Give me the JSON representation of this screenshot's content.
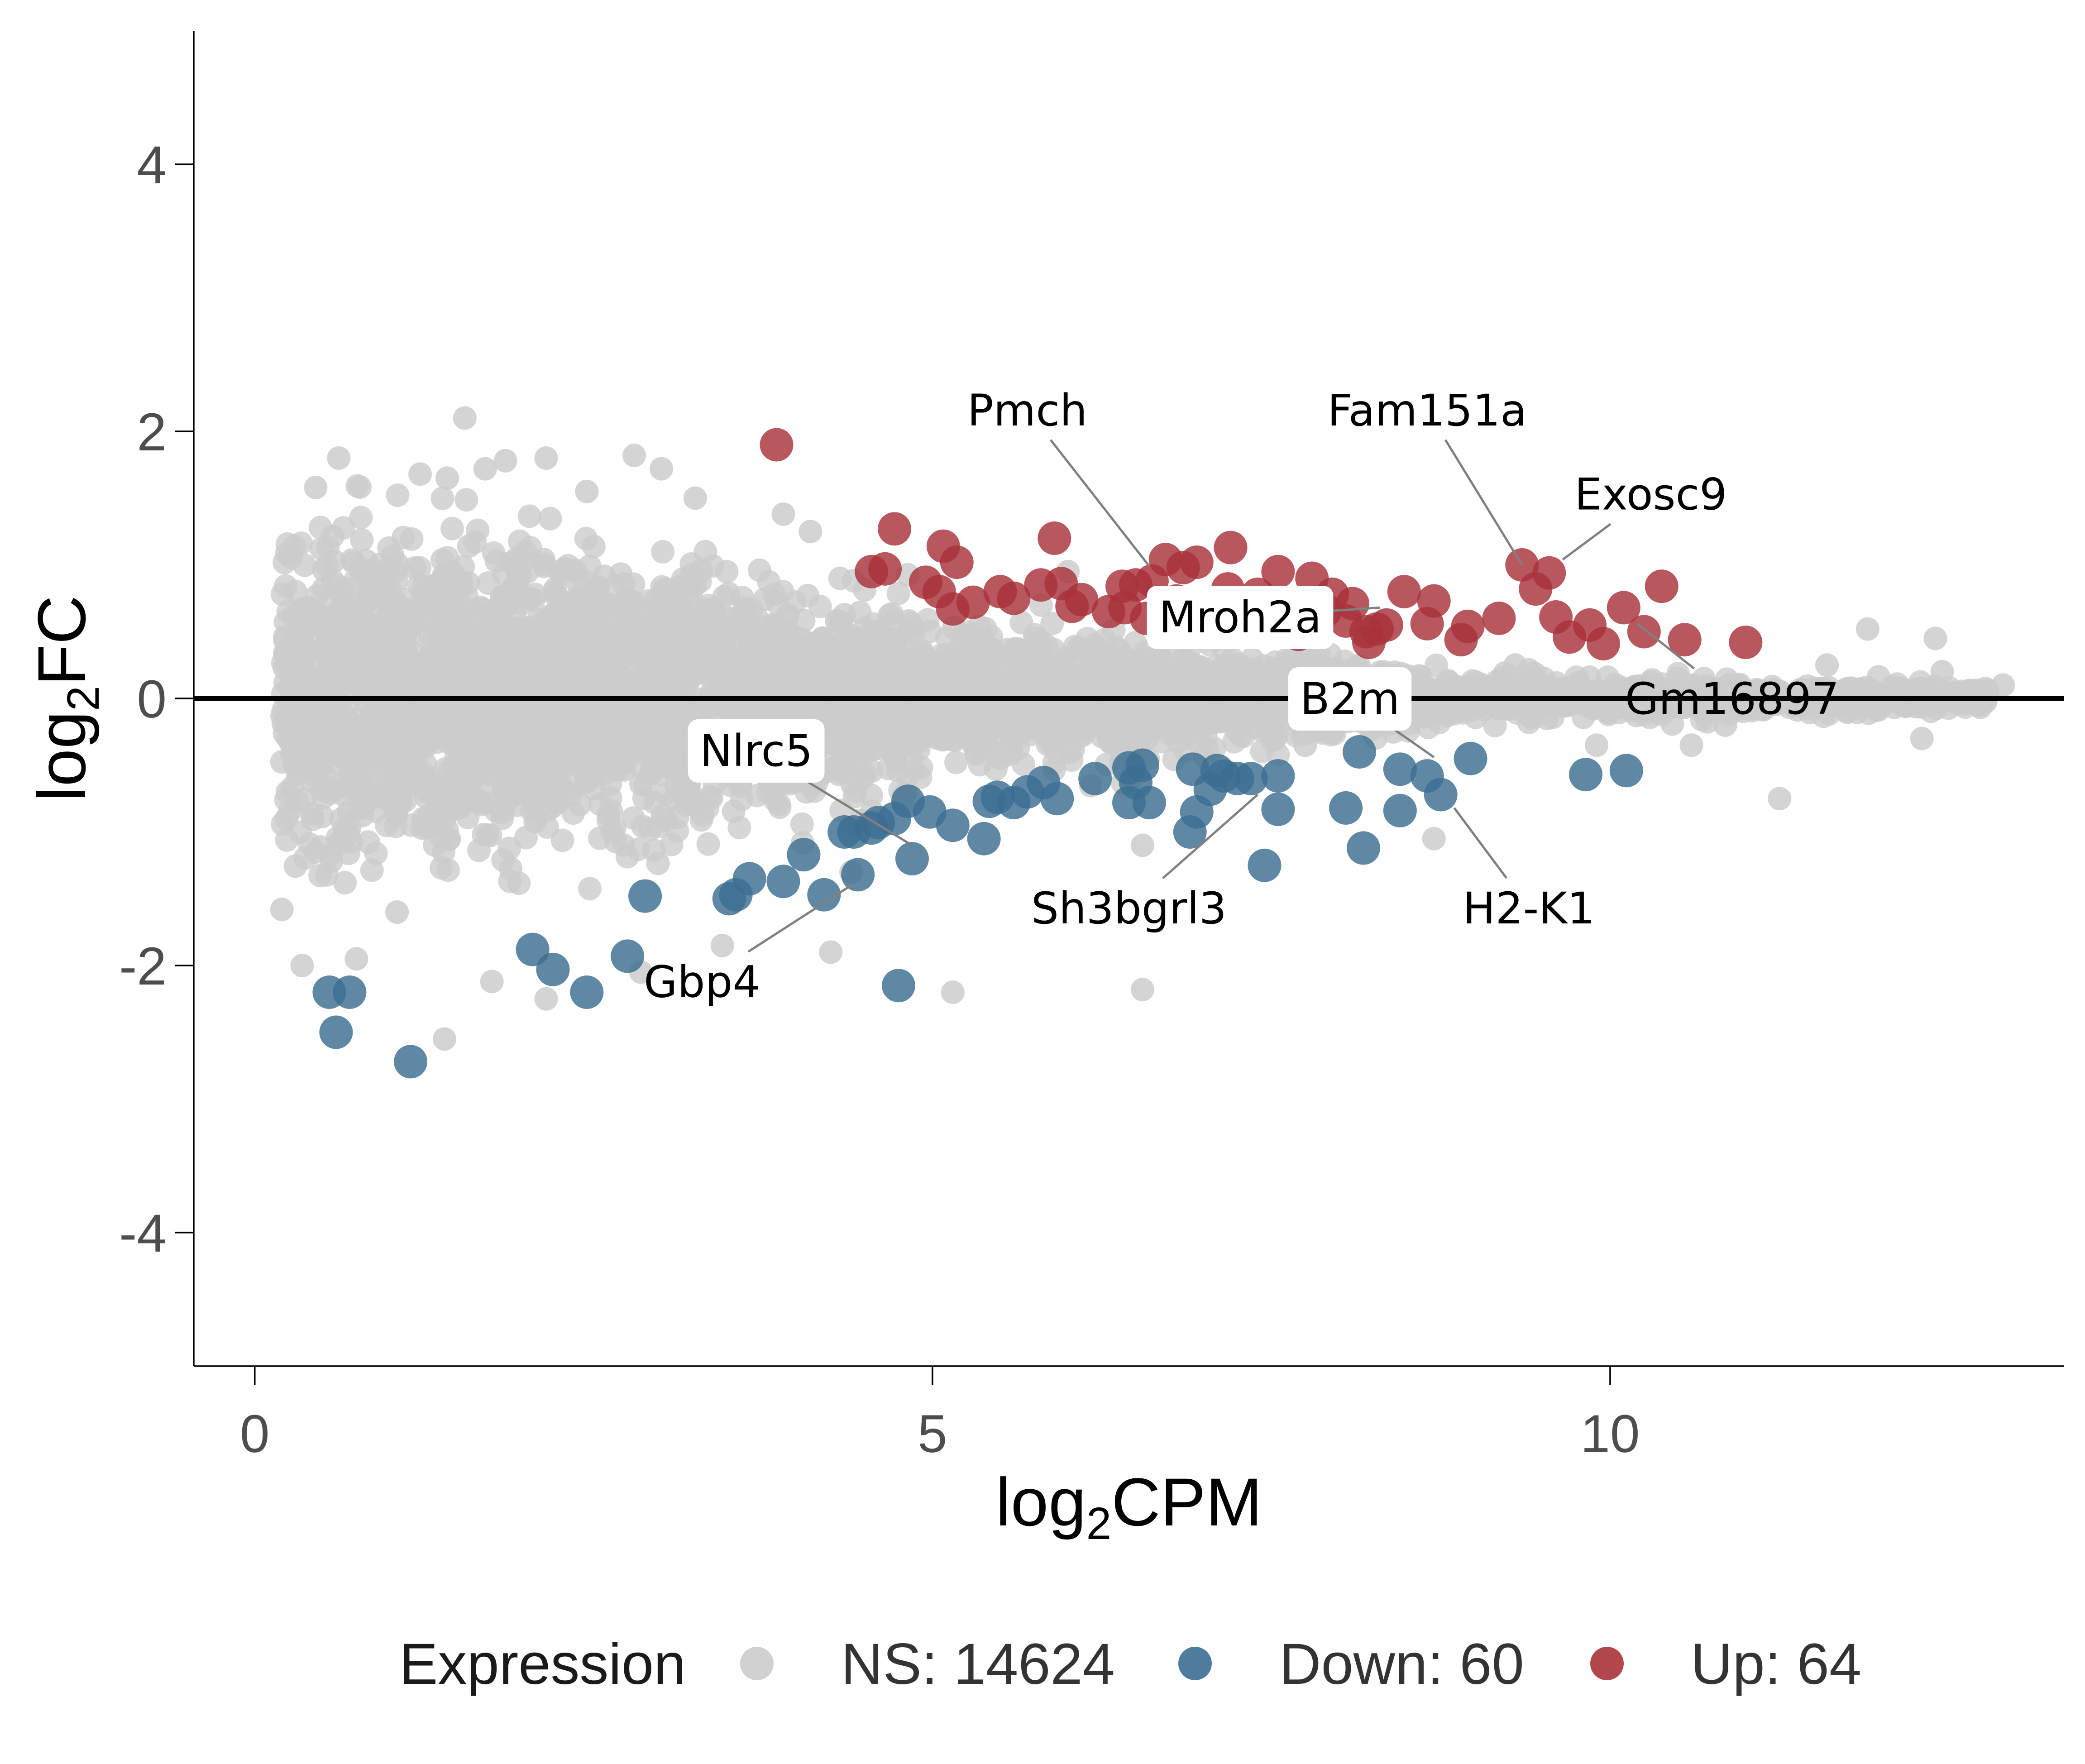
{
  "chart_data": {
    "type": "scatter",
    "title": "",
    "xlabel": {
      "base": "log",
      "sub": "2",
      "rest": "CPM"
    },
    "ylabel": {
      "base": "log",
      "sub": "2",
      "rest": "FC"
    },
    "xlim": [
      -0.45,
      13.35
    ],
    "ylim": [
      -5,
      5
    ],
    "xticks": [
      0,
      5,
      10
    ],
    "xtick_labels": [
      "0",
      "5",
      "10"
    ],
    "yticks": [
      -4,
      -2,
      0,
      2,
      4
    ],
    "ytick_labels": [
      "-4",
      "-2",
      "0",
      "2",
      "4"
    ],
    "reference_line": {
      "y": 0,
      "color": "#000000"
    },
    "grid": false,
    "legend": {
      "position": "bottom",
      "title": "Expression",
      "entries": [
        {
          "key": "ns",
          "label": "NS: 14624",
          "color": "#cccccc"
        },
        {
          "key": "down",
          "label": "Down: 60",
          "color": "#3c6e91"
        },
        {
          "key": "up",
          "label": "Up: 64",
          "color": "#a8323a"
        }
      ]
    },
    "colors": {
      "ns": "#cccccc",
      "down": "#3c6e91",
      "up": "#a8323a"
    },
    "up_points": [
      [
        3.85,
        1.9
      ],
      [
        4.55,
        0.95
      ],
      [
        4.65,
        0.97
      ],
      [
        4.72,
        1.27
      ],
      [
        5.08,
        1.14
      ],
      [
        5.18,
        1.02
      ],
      [
        4.95,
        0.87
      ],
      [
        5.05,
        0.8
      ],
      [
        5.15,
        0.67
      ],
      [
        5.9,
        1.2
      ],
      [
        5.8,
        0.85
      ],
      [
        5.95,
        0.86
      ],
      [
        6.03,
        0.69
      ],
      [
        6.4,
        0.84
      ],
      [
        6.5,
        0.85
      ],
      [
        6.42,
        0.68
      ],
      [
        6.62,
        0.88
      ],
      [
        6.72,
        1.04
      ],
      [
        6.85,
        0.98
      ],
      [
        6.8,
        0.73
      ],
      [
        6.95,
        1.02
      ],
      [
        7.2,
        1.13
      ],
      [
        7.18,
        0.82
      ],
      [
        7.08,
        0.63
      ],
      [
        7.3,
        0.56
      ],
      [
        7.55,
        0.95
      ],
      [
        7.8,
        0.9
      ],
      [
        7.6,
        0.6
      ],
      [
        7.9,
        0.66
      ],
      [
        8.05,
        0.58
      ],
      [
        8.2,
        0.5
      ],
      [
        8.1,
        0.71
      ],
      [
        8.28,
        0.52
      ],
      [
        8.22,
        0.42
      ],
      [
        8.35,
        0.55
      ],
      [
        8.48,
        0.8
      ],
      [
        8.7,
        0.73
      ],
      [
        8.65,
        0.56
      ],
      [
        8.95,
        0.54
      ],
      [
        9.18,
        0.6
      ],
      [
        9.35,
        1.0
      ],
      [
        9.45,
        0.82
      ],
      [
        9.55,
        0.94
      ],
      [
        9.6,
        0.61
      ],
      [
        9.7,
        0.46
      ],
      [
        9.95,
        0.41
      ],
      [
        10.1,
        0.68
      ],
      [
        10.38,
        0.84
      ],
      [
        10.55,
        0.44
      ],
      [
        11.0,
        0.42
      ],
      [
        6.58,
        0.6
      ],
      [
        6.3,
        0.65
      ],
      [
        7.4,
        0.78
      ],
      [
        5.6,
        0.75
      ],
      [
        7.7,
        0.48
      ],
      [
        8.9,
        0.44
      ],
      [
        6.1,
        0.74
      ],
      [
        7.0,
        0.55
      ],
      [
        5.5,
        0.8
      ],
      [
        9.85,
        0.55
      ],
      [
        6.75,
        0.62
      ],
      [
        7.95,
        0.78
      ],
      [
        5.3,
        0.72
      ],
      [
        10.25,
        0.5
      ]
    ],
    "down_points": [
      [
        0.55,
        -2.2
      ],
      [
        0.7,
        -2.2
      ],
      [
        0.6,
        -2.5
      ],
      [
        1.15,
        -2.72
      ],
      [
        2.05,
        -1.88
      ],
      [
        2.2,
        -2.03
      ],
      [
        2.45,
        -2.2
      ],
      [
        2.75,
        -1.93
      ],
      [
        2.88,
        -1.48
      ],
      [
        3.5,
        -1.5
      ],
      [
        3.55,
        -1.47
      ],
      [
        3.65,
        -1.35
      ],
      [
        3.9,
        -1.37
      ],
      [
        4.05,
        -1.17
      ],
      [
        4.2,
        -1.47
      ],
      [
        4.35,
        -1.0
      ],
      [
        4.42,
        -1.0
      ],
      [
        4.45,
        -1.32
      ],
      [
        4.55,
        -0.97
      ],
      [
        4.6,
        -0.93
      ],
      [
        4.72,
        -0.9
      ],
      [
        4.82,
        -0.77
      ],
      [
        4.85,
        -1.2
      ],
      [
        4.75,
        -2.15
      ],
      [
        5.15,
        -0.95
      ],
      [
        5.38,
        -1.05
      ],
      [
        5.42,
        -0.77
      ],
      [
        5.48,
        -0.74
      ],
      [
        5.6,
        -0.78
      ],
      [
        5.82,
        -0.63
      ],
      [
        5.92,
        -0.75
      ],
      [
        6.45,
        -0.52
      ],
      [
        6.5,
        -0.63
      ],
      [
        6.55,
        -0.5
      ],
      [
        6.45,
        -0.78
      ],
      [
        6.6,
        -0.78
      ],
      [
        6.92,
        -0.53
      ],
      [
        7.05,
        -0.68
      ],
      [
        7.1,
        -0.54
      ],
      [
        7.15,
        -0.58
      ],
      [
        6.95,
        -0.85
      ],
      [
        6.9,
        -1.0
      ],
      [
        7.35,
        -0.6
      ],
      [
        7.55,
        -0.58
      ],
      [
        7.55,
        -0.83
      ],
      [
        7.45,
        -1.25
      ],
      [
        8.05,
        -0.82
      ],
      [
        8.15,
        -0.4
      ],
      [
        8.18,
        -1.12
      ],
      [
        8.45,
        -0.53
      ],
      [
        8.45,
        -0.84
      ],
      [
        8.65,
        -0.58
      ],
      [
        8.75,
        -0.72
      ],
      [
        8.97,
        -0.45
      ],
      [
        9.82,
        -0.57
      ],
      [
        10.12,
        -0.54
      ],
      [
        7.25,
        -0.6
      ],
      [
        5.7,
        -0.7
      ],
      [
        6.2,
        -0.6
      ],
      [
        4.98,
        -0.85
      ]
    ],
    "ns_generation": {
      "rows": [
        [
          0.2,
          0.35,
          0.95
        ],
        [
          0.35,
          1.6,
          1.05
        ],
        [
          1.6,
          3.5,
          0.9
        ],
        [
          3.5,
          5.0,
          0.62
        ],
        [
          5.0,
          6.5,
          0.42
        ],
        [
          6.5,
          8.0,
          0.27
        ],
        [
          8.0,
          9.5,
          0.19
        ],
        [
          9.5,
          11.0,
          0.13
        ],
        [
          11.0,
          12.5,
          0.09
        ],
        [
          12.5,
          12.8,
          0.07
        ]
      ],
      "count": 4200
    },
    "ns_outliers": [
      [
        1.55,
        2.1
      ],
      [
        0.45,
        1.58
      ],
      [
        0.62,
        1.8
      ],
      [
        1.22,
        1.68
      ],
      [
        1.42,
        1.65
      ],
      [
        1.7,
        1.72
      ],
      [
        1.85,
        1.78
      ],
      [
        2.15,
        1.8
      ],
      [
        2.8,
        1.82
      ],
      [
        3.0,
        1.72
      ],
      [
        2.45,
        1.55
      ],
      [
        3.25,
        1.5
      ],
      [
        1.05,
        -1.6
      ],
      [
        0.2,
        -1.58
      ],
      [
        0.35,
        -2.0
      ],
      [
        0.75,
        -1.95
      ],
      [
        1.4,
        -2.55
      ],
      [
        1.75,
        -2.12
      ],
      [
        2.15,
        -2.25
      ],
      [
        2.85,
        -2.05
      ],
      [
        3.45,
        -1.85
      ],
      [
        4.25,
        -1.9
      ],
      [
        5.15,
        -2.2
      ],
      [
        6.55,
        -2.18
      ],
      [
        6.55,
        -1.1
      ],
      [
        3.9,
        1.38
      ],
      [
        11.9,
        0.52
      ],
      [
        12.4,
        0.45
      ],
      [
        12.9,
        0.1
      ],
      [
        12.3,
        -0.3
      ],
      [
        12.45,
        0.2
      ],
      [
        11.25,
        -0.75
      ],
      [
        10.85,
        -0.2
      ],
      [
        10.5,
        0.15
      ],
      [
        9.3,
        0.25
      ],
      [
        9.9,
        -0.35
      ],
      [
        8.7,
        -1.05
      ],
      [
        8.4,
        -0.25
      ],
      [
        10.6,
        -0.35
      ],
      [
        11.6,
        0.25
      ],
      [
        7.75,
        -0.35
      ],
      [
        5.5,
        -0.45
      ],
      [
        4.1,
        1.25
      ],
      [
        4.4,
        -1.3
      ],
      [
        6.0,
        0.95
      ]
    ],
    "annotations": [
      {
        "text": "Pmch",
        "point": [
          6.6,
          0.99
        ],
        "anchor": [
          5.7,
          2.16
        ],
        "boxed": false
      },
      {
        "text": "Fam151a",
        "point": [
          9.35,
          1.0
        ],
        "anchor": [
          8.65,
          2.16
        ],
        "boxed": false
      },
      {
        "text": "Exosc9",
        "point": [
          9.65,
          1.04
        ],
        "anchor": [
          10.3,
          1.53
        ],
        "boxed": false
      },
      {
        "text": "Mroh2a",
        "point": [
          8.3,
          0.68
        ],
        "anchor": [
          7.27,
          0.61
        ],
        "boxed": true
      },
      {
        "text": "Gm16897",
        "point": [
          10.2,
          0.56
        ],
        "anchor": [
          10.9,
          0.0
        ],
        "boxed": false
      },
      {
        "text": "B2m",
        "point": [
          8.7,
          -0.44
        ],
        "anchor": [
          8.08,
          0.0
        ],
        "boxed": true
      },
      {
        "text": "Nlrc5",
        "point": [
          4.85,
          -1.1
        ],
        "anchor": [
          3.7,
          -0.39
        ],
        "boxed": true
      },
      {
        "text": "Sh3bgrl3",
        "point": [
          7.4,
          -0.72
        ],
        "anchor": [
          6.45,
          -1.57
        ],
        "boxed": false
      },
      {
        "text": "H2-K1",
        "point": [
          8.85,
          -0.82
        ],
        "anchor": [
          9.4,
          -1.57
        ],
        "boxed": false
      },
      {
        "text": "Gbp4",
        "point": [
          4.4,
          -1.4
        ],
        "anchor": [
          3.3,
          -2.12
        ],
        "boxed": false
      }
    ]
  }
}
